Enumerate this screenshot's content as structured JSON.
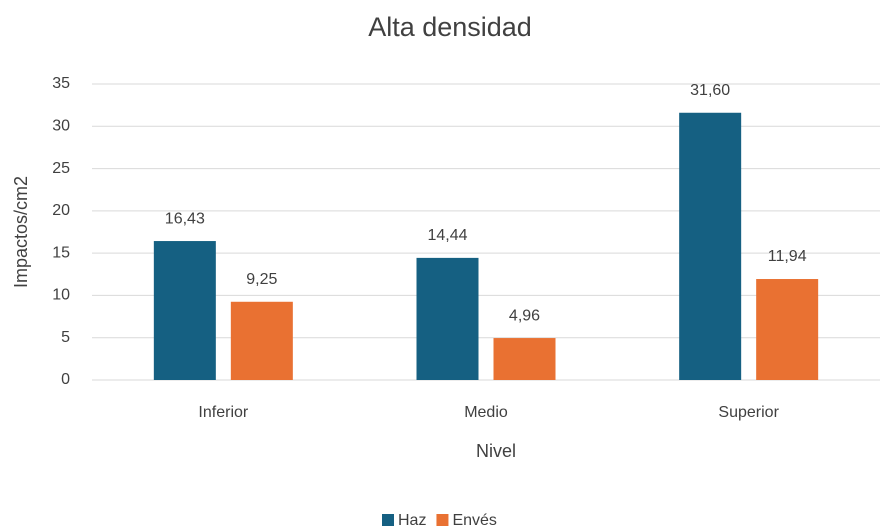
{
  "chart_data": {
    "type": "bar",
    "title": "Alta densidad",
    "x_label": "Nivel",
    "y_label": "Impactos/cm2",
    "categories": [
      "Inferior",
      "Medio",
      "Superior"
    ],
    "series": [
      {
        "name": "Haz",
        "color": "#156082",
        "values": [
          16.43,
          14.44,
          31.6
        ],
        "value_labels": [
          "16,43",
          "14,44",
          "31,60"
        ]
      },
      {
        "name": "Envés",
        "color": "#e97132",
        "values": [
          9.25,
          4.96,
          11.94
        ],
        "value_labels": [
          "9,25",
          "4,96",
          "11,94"
        ]
      }
    ],
    "ylim": [
      0,
      35
    ],
    "yticks": [
      0,
      5,
      10,
      15,
      20,
      25,
      30,
      35
    ],
    "grid": true,
    "legend": "bottom"
  }
}
